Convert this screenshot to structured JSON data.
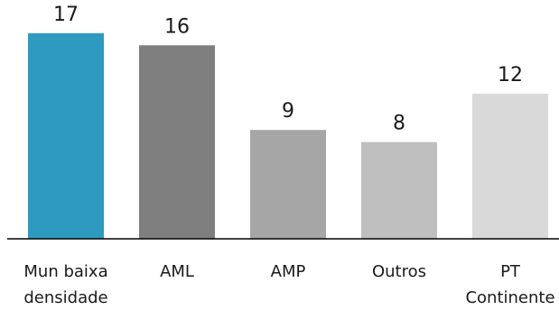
{
  "chart_data": {
    "type": "bar",
    "categories": [
      [
        "Mun baixa",
        "densidade"
      ],
      [
        "AML"
      ],
      [
        "AMP"
      ],
      [
        "Outros"
      ],
      [
        "PT",
        "Continente"
      ]
    ],
    "values": [
      17,
      16,
      9,
      8,
      12
    ],
    "colors": [
      "#2e9abf",
      "#7f7f7f",
      "#a6a6a6",
      "#bfbfbf",
      "#d9d9d9"
    ],
    "ylim": [
      0,
      19
    ],
    "title": "",
    "xlabel": "",
    "ylabel": "",
    "grid": false,
    "legend": "none"
  }
}
